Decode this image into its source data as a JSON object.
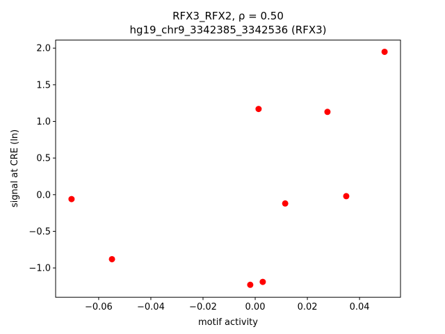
{
  "chart_data": {
    "type": "scatter",
    "title": "RFX3_RFX2, ρ = 0.50",
    "subtitle": "hg19_chr9_3342385_3342536 (RFX3)",
    "xlabel": "motif activity",
    "ylabel": "signal at CRE (ln)",
    "color": "#ff0000",
    "x": [
      -0.0704,
      -0.0549,
      -0.0019,
      0.0013,
      0.0029,
      0.0115,
      0.0277,
      0.0349,
      0.0496
    ],
    "values": [
      -0.06,
      -0.88,
      -1.23,
      1.17,
      -1.19,
      -0.12,
      1.13,
      -0.02,
      1.95
    ],
    "xlim": [
      -0.0765,
      0.0557
    ],
    "ylim": [
      -1.4,
      2.11
    ],
    "xticks": [
      {
        "value": -0.06,
        "label": "−0.06"
      },
      {
        "value": -0.04,
        "label": "−0.04"
      },
      {
        "value": -0.02,
        "label": "−0.02"
      },
      {
        "value": 0,
        "label": "0.00"
      },
      0.02,
      0.04
    ],
    "yticks": [
      {
        "value": -1,
        "label": "−1.0"
      },
      {
        "value": -0.5,
        "label": "−0.5"
      },
      {
        "value": 0,
        "label": "0.0"
      },
      0.5,
      {
        "value": 1,
        "label": "1.0"
      },
      1.5,
      {
        "value": 2,
        "label": "2.0"
      }
    ],
    "grid": false
  }
}
